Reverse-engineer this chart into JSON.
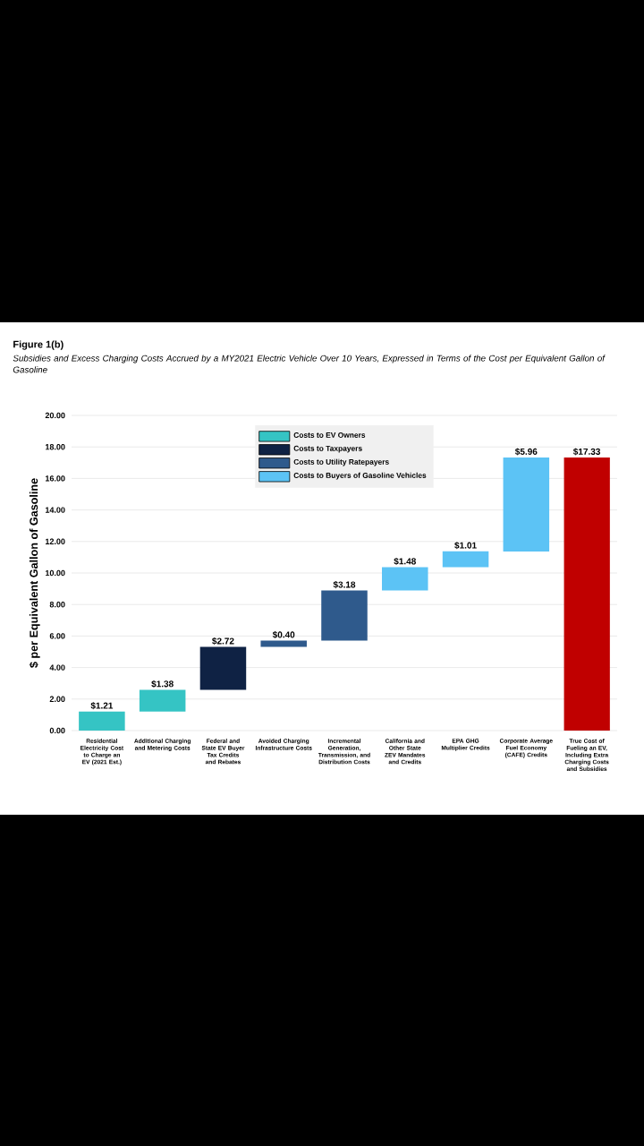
{
  "chart_data": {
    "type": "bar",
    "title": "Figure 1(b)",
    "subtitle": "Subsidies and Excess Charging Costs Accrued by a MY2021 Electric Vehicle Over 10 Years, Expressed in Terms of the Cost per Equivalent Gallon of Gasoline",
    "ylabel": "$ per Equivalent Gallon of Gasoline",
    "categories": [
      "Residential Electricity Cost to Charge an EV (2021 Est.)",
      "Additional Charging and Metering Costs",
      "Federal and State EV Buyer Tax Credits and Rebates",
      "Avoided Charging Infrastructure Costs",
      "Incremental Generation, Transmission, and Distribution Costs",
      "California and Other State ZEV Mandates and Credits",
      "EPA GHG Multiplier Credits",
      "Corporate Average Fuel Economy (CAFE) Credits",
      "True Cost of Fueling an EV, Including Extra Charging Costs and Subsidies"
    ],
    "series": [
      {
        "name": "Costs to EV Owners",
        "color": "#35c4c4",
        "values": [
          1.21,
          1.38,
          null,
          null,
          null,
          null,
          null,
          null,
          null
        ],
        "base": [
          0,
          1.21,
          null,
          null,
          null,
          null,
          null,
          null,
          null
        ],
        "value_labels": [
          "$1.21",
          "$1.38",
          null,
          null,
          null,
          null,
          null,
          null,
          null
        ]
      },
      {
        "name": "Costs to Taxpayers",
        "color": "#0f2244",
        "values": [
          null,
          null,
          2.72,
          null,
          null,
          null,
          null,
          null,
          null
        ],
        "base": [
          null,
          null,
          2.59,
          null,
          null,
          null,
          null,
          null,
          null
        ],
        "value_labels": [
          null,
          null,
          "$2.72",
          null,
          null,
          null,
          null,
          null,
          null
        ]
      },
      {
        "name": "Costs to Utility Ratepayers",
        "color": "#2f5a8c",
        "values": [
          null,
          null,
          null,
          0.4,
          3.18,
          null,
          null,
          null,
          null
        ],
        "base": [
          null,
          null,
          null,
          5.31,
          5.71,
          null,
          null,
          null,
          null
        ],
        "value_labels": [
          null,
          null,
          null,
          "$0.40",
          "$3.18",
          null,
          null,
          null,
          null
        ]
      },
      {
        "name": "Costs to Buyers of Gasoline Vehicles",
        "color": "#5cc3f5",
        "values": [
          null,
          null,
          null,
          null,
          null,
          1.48,
          1.01,
          5.96,
          null
        ],
        "base": [
          null,
          null,
          null,
          null,
          null,
          8.89,
          10.37,
          11.37,
          null
        ],
        "value_labels": [
          null,
          null,
          null,
          null,
          null,
          "$1.48",
          "$1.01",
          "$5.96",
          null
        ]
      },
      {
        "color": "#c00000",
        "values": [
          null,
          null,
          null,
          null,
          null,
          null,
          null,
          null,
          17.33
        ],
        "base": [
          null,
          null,
          null,
          null,
          null,
          null,
          null,
          null,
          0
        ],
        "value_labels": [
          null,
          null,
          null,
          null,
          null,
          null,
          null,
          null,
          "$17.33"
        ]
      }
    ],
    "ylim": [
      0,
      20
    ],
    "yticks": [
      {
        "value": 0,
        "label": "0.00"
      },
      {
        "value": 2,
        "label": "2.00"
      },
      {
        "value": 4,
        "label": "4.00"
      },
      {
        "value": 6,
        "label": "6.00"
      },
      {
        "value": 8,
        "label": "8.00"
      },
      {
        "value": 10,
        "label": "10.00"
      },
      {
        "value": 12,
        "label": "12.00"
      },
      {
        "value": 14,
        "label": "14.00"
      },
      {
        "value": 16,
        "label": "16.00"
      },
      {
        "value": 18,
        "label": "18.00"
      },
      {
        "value": 20,
        "label": "20.00"
      }
    ],
    "grid": "y",
    "legend": "top"
  }
}
